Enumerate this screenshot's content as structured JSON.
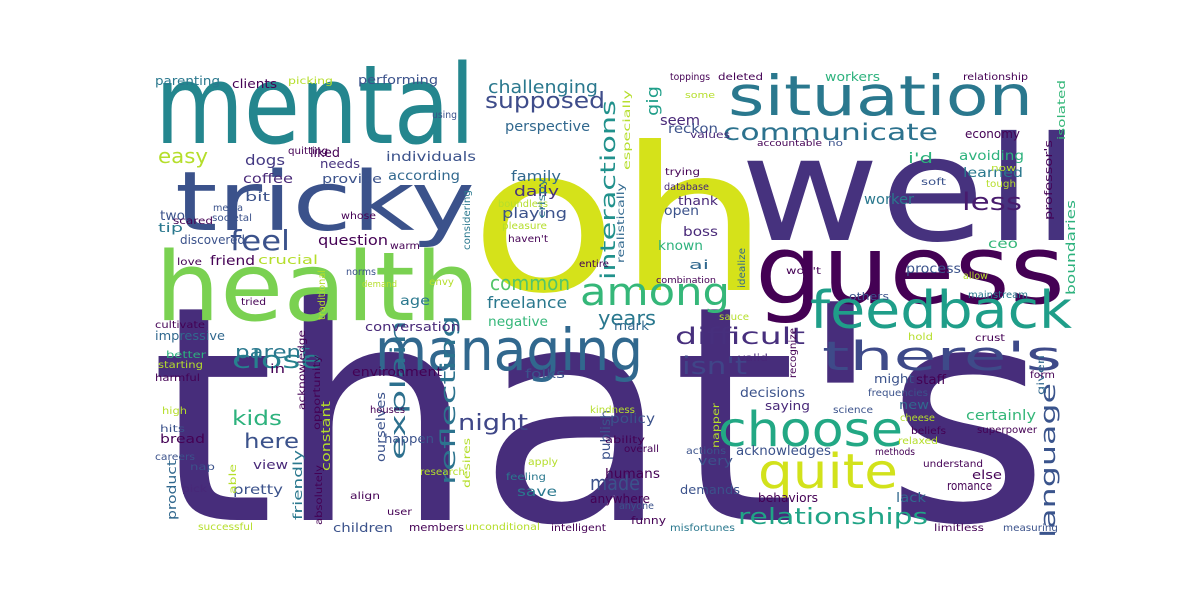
{
  "wordcloud": {
    "words": [
      {
        "text": "that's",
        "color": "#472d7b"
      },
      {
        "text": "oh",
        "color": "#d5e21a"
      },
      {
        "text": "well",
        "color": "#46327e"
      },
      {
        "text": "mental",
        "color": "#24868e"
      },
      {
        "text": "guess",
        "color": "#440154"
      },
      {
        "text": "health",
        "color": "#7ad151"
      },
      {
        "text": "tricky",
        "color": "#3b528b"
      },
      {
        "text": "situation",
        "color": "#2a788e"
      },
      {
        "text": "managing",
        "color": "#31688e"
      },
      {
        "text": "feedback",
        "color": "#1f9e89"
      },
      {
        "text": "choose",
        "color": "#22a884"
      },
      {
        "text": "quite",
        "color": "#d2e21b"
      },
      {
        "text": "there's",
        "color": "#3e4a89"
      },
      {
        "text": "among",
        "color": "#35b779"
      },
      {
        "text": "communicate",
        "color": "#2c728e"
      },
      {
        "text": "relationships",
        "color": "#20a486"
      },
      {
        "text": "difficult",
        "color": "#472f7d"
      },
      {
        "text": "feel",
        "color": "#3b528b"
      },
      {
        "text": "close",
        "color": "#26818e"
      },
      {
        "text": "isn't",
        "color": "#404588"
      },
      {
        "text": "supposed",
        "color": "#3e4c8a"
      },
      {
        "text": "language",
        "color": "#3a548c"
      },
      {
        "text": "interactions",
        "color": "#21918c"
      },
      {
        "text": "reflecting",
        "color": "#2c738e"
      },
      {
        "text": "explain",
        "color": "#2d708e"
      },
      {
        "text": "less",
        "color": "#481b6d"
      },
      {
        "text": "easy",
        "color": "#b5de2b"
      },
      {
        "text": "common",
        "color": "#52c569"
      },
      {
        "text": "night",
        "color": "#3f4788"
      },
      {
        "text": "kids",
        "color": "#2db27d"
      },
      {
        "text": "here",
        "color": "#3b528b"
      },
      {
        "text": "parent",
        "color": "#2a788e"
      },
      {
        "text": "years",
        "color": "#2a788e"
      },
      {
        "text": "made",
        "color": "#3b528b"
      },
      {
        "text": "challenging",
        "color": "#2a788e"
      },
      {
        "text": "seem",
        "color": "#482878"
      },
      {
        "text": "gig",
        "color": "#1f9e89"
      },
      {
        "text": "reckon",
        "color": "#3b528b"
      },
      {
        "text": "perspective",
        "color": "#31688e"
      },
      {
        "text": "worker",
        "color": "#2a788e"
      },
      {
        "text": "freelance",
        "color": "#2a788e"
      },
      {
        "text": "dogs",
        "color": "#443983"
      },
      {
        "text": "coffee",
        "color": "#482878"
      },
      {
        "text": "liked",
        "color": "#440154"
      },
      {
        "text": "needs",
        "color": "#46327e"
      },
      {
        "text": "provide",
        "color": "#3b528b"
      },
      {
        "text": "individuals",
        "color": "#3b528b"
      },
      {
        "text": "according",
        "color": "#31688e"
      },
      {
        "text": "family",
        "color": "#31688e"
      },
      {
        "text": "daily",
        "color": "#46327e"
      },
      {
        "text": "playing",
        "color": "#3b528b"
      },
      {
        "text": "question",
        "color": "#440154"
      },
      {
        "text": "crucial",
        "color": "#b5de2b"
      },
      {
        "text": "friend",
        "color": "#440154"
      },
      {
        "text": "age",
        "color": "#2a788e"
      },
      {
        "text": "conversation",
        "color": "#482878"
      },
      {
        "text": "negative",
        "color": "#35b779"
      },
      {
        "text": "mark",
        "color": "#31688e"
      },
      {
        "text": "environment",
        "color": "#440154"
      },
      {
        "text": "folks",
        "color": "#3b528b"
      },
      {
        "text": "policy",
        "color": "#3b528b"
      },
      {
        "text": "publish",
        "color": "#3b528b"
      },
      {
        "text": "humans",
        "color": "#440154"
      },
      {
        "text": "happen",
        "color": "#3b528b"
      },
      {
        "text": "ourselves",
        "color": "#3b528b"
      },
      {
        "text": "save",
        "color": "#2a788e"
      },
      {
        "text": "anywhere",
        "color": "#440154"
      },
      {
        "text": "demands",
        "color": "#3b528b"
      },
      {
        "text": "behaviors",
        "color": "#440154"
      },
      {
        "text": "lack",
        "color": "#31688e"
      },
      {
        "text": "romance",
        "color": "#440154"
      },
      {
        "text": "else",
        "color": "#440154"
      },
      {
        "text": "certainly",
        "color": "#35b779"
      },
      {
        "text": "decisions",
        "color": "#3b528b"
      },
      {
        "text": "acknowledges",
        "color": "#3b528b"
      },
      {
        "text": "saying",
        "color": "#482878"
      },
      {
        "text": "very",
        "color": "#3b528b"
      },
      {
        "text": "might",
        "color": "#3b528b"
      },
      {
        "text": "staff",
        "color": "#440154"
      },
      {
        "text": "new",
        "color": "#31688e"
      },
      {
        "text": "open",
        "color": "#3b528b"
      },
      {
        "text": "thank",
        "color": "#482878"
      },
      {
        "text": "boss",
        "color": "#482878"
      },
      {
        "text": "ai",
        "color": "#31688e"
      },
      {
        "text": "known",
        "color": "#2db27d"
      },
      {
        "text": "process",
        "color": "#3b528b"
      },
      {
        "text": "others",
        "color": "#3b528b"
      },
      {
        "text": "ceo",
        "color": "#35b779"
      },
      {
        "text": "learned",
        "color": "#2a788e"
      },
      {
        "text": "avoiding",
        "color": "#2db27d"
      },
      {
        "text": "i'd",
        "color": "#2db27d"
      },
      {
        "text": "economy",
        "color": "#440154"
      },
      {
        "text": "workers",
        "color": "#2db27d"
      },
      {
        "text": "isolated",
        "color": "#35b779"
      },
      {
        "text": "boundaries",
        "color": "#2db27d"
      },
      {
        "text": "professor's",
        "color": "#440154"
      },
      {
        "text": "two",
        "color": "#3b528b"
      },
      {
        "text": "tip",
        "color": "#2a788e"
      },
      {
        "text": "bit",
        "color": "#3b528b"
      },
      {
        "text": "discovered",
        "color": "#3b528b"
      },
      {
        "text": "love",
        "color": "#440154"
      },
      {
        "text": "tried",
        "color": "#440154"
      },
      {
        "text": "cultivate",
        "color": "#440154"
      },
      {
        "text": "impressive",
        "color": "#31688e"
      },
      {
        "text": "better",
        "color": "#2db27d"
      },
      {
        "text": "starting",
        "color": "#b5de2b"
      },
      {
        "text": "harmful",
        "color": "#440154"
      },
      {
        "text": "in",
        "color": "#440154"
      },
      {
        "text": "high",
        "color": "#b5de2b"
      },
      {
        "text": "hits",
        "color": "#3b528b"
      },
      {
        "text": "bread",
        "color": "#440154"
      },
      {
        "text": "careers",
        "color": "#3b528b"
      },
      {
        "text": "nap",
        "color": "#3b528b"
      },
      {
        "text": "pick",
        "color": "#482878"
      },
      {
        "text": "product",
        "color": "#31688e"
      },
      {
        "text": "view",
        "color": "#482878"
      },
      {
        "text": "pretty",
        "color": "#3b528b"
      },
      {
        "text": "friendly",
        "color": "#2a788e"
      },
      {
        "text": "successful",
        "color": "#b5de2b"
      },
      {
        "text": "children",
        "color": "#3b528b"
      },
      {
        "text": "members",
        "color": "#440154"
      },
      {
        "text": "unconditional",
        "color": "#b5de2b"
      },
      {
        "text": "intelligent",
        "color": "#440154"
      },
      {
        "text": "funny",
        "color": "#440154"
      },
      {
        "text": "misfortunes",
        "color": "#2a788e"
      },
      {
        "text": "limitless",
        "color": "#440154"
      },
      {
        "text": "measuring",
        "color": "#3b528b"
      },
      {
        "text": "parenting",
        "color": "#2a788e"
      },
      {
        "text": "clients",
        "color": "#440154"
      },
      {
        "text": "picking",
        "color": "#b5de2b"
      },
      {
        "text": "performing",
        "color": "#3b528b"
      },
      {
        "text": "using",
        "color": "#3b528b"
      },
      {
        "text": "quitting",
        "color": "#440154"
      },
      {
        "text": "toppings",
        "color": "#440154"
      },
      {
        "text": "deleted",
        "color": "#440154"
      },
      {
        "text": "relationship",
        "color": "#440154"
      },
      {
        "text": "values",
        "color": "#482878"
      },
      {
        "text": "especially",
        "color": "#b5de2b"
      },
      {
        "text": "accountable",
        "color": "#440154"
      },
      {
        "text": "no",
        "color": "#3b528b"
      },
      {
        "text": "some",
        "color": "#b5de2b"
      },
      {
        "text": "trying",
        "color": "#440154"
      },
      {
        "text": "database",
        "color": "#482878"
      },
      {
        "text": "soft",
        "color": "#3b528b"
      },
      {
        "text": "tough",
        "color": "#b5de2b"
      },
      {
        "text": "now",
        "color": "#b5de2b"
      },
      {
        "text": "media",
        "color": "#3b528b"
      },
      {
        "text": "societal",
        "color": "#3b528b"
      },
      {
        "text": "scared",
        "color": "#440154"
      },
      {
        "text": "whose",
        "color": "#440154"
      },
      {
        "text": "warm",
        "color": "#440154"
      },
      {
        "text": "considering",
        "color": "#2a788e"
      },
      {
        "text": "boundless",
        "color": "#b5de2b"
      },
      {
        "text": "pleasure",
        "color": "#b5de2b"
      },
      {
        "text": "crispy",
        "color": "#2a788e"
      },
      {
        "text": "haven't",
        "color": "#440154"
      },
      {
        "text": "realistically",
        "color": "#31688e"
      },
      {
        "text": "combination",
        "color": "#440154"
      },
      {
        "text": "entire",
        "color": "#440154"
      },
      {
        "text": "idealize",
        "color": "#31688e"
      },
      {
        "text": "won't",
        "color": "#440154"
      },
      {
        "text": "allow",
        "color": "#b5de2b"
      },
      {
        "text": "norms",
        "color": "#3b528b"
      },
      {
        "text": "traditional",
        "color": "#b5de2b"
      },
      {
        "text": "envy",
        "color": "#b5de2b"
      },
      {
        "text": "demand",
        "color": "#b5de2b"
      },
      {
        "text": "sauce",
        "color": "#b5de2b"
      },
      {
        "text": "mainstream",
        "color": "#2a788e"
      },
      {
        "text": "hold",
        "color": "#b5de2b"
      },
      {
        "text": "crust",
        "color": "#440154"
      },
      {
        "text": "recognize",
        "color": "#440154"
      },
      {
        "text": "valid",
        "color": "#482878"
      },
      {
        "text": "given",
        "color": "#31688e"
      },
      {
        "text": "form",
        "color": "#440154"
      },
      {
        "text": "frequencies",
        "color": "#3b528b"
      },
      {
        "text": "science",
        "color": "#3b528b"
      },
      {
        "text": "cheese",
        "color": "#b5de2b"
      },
      {
        "text": "beliefs",
        "color": "#440154"
      },
      {
        "text": "relaxed",
        "color": "#b5de2b"
      },
      {
        "text": "superpower",
        "color": "#440154"
      },
      {
        "text": "methods",
        "color": "#440154"
      },
      {
        "text": "napper",
        "color": "#b5de2b"
      },
      {
        "text": "understand",
        "color": "#440154"
      },
      {
        "text": "actions",
        "color": "#3b528b"
      },
      {
        "text": "overall",
        "color": "#440154"
      },
      {
        "text": "anyone",
        "color": "#3b528b"
      },
      {
        "text": "ability",
        "color": "#440154"
      },
      {
        "text": "kindness",
        "color": "#b5de2b"
      },
      {
        "text": "houses",
        "color": "#440154"
      },
      {
        "text": "research",
        "color": "#b5de2b"
      },
      {
        "text": "desires",
        "color": "#b5de2b"
      },
      {
        "text": "apply",
        "color": "#b5de2b"
      },
      {
        "text": "feeling",
        "color": "#2a788e"
      },
      {
        "text": "user",
        "color": "#440154"
      },
      {
        "text": "align",
        "color": "#440154"
      },
      {
        "text": "absolutely",
        "color": "#440154"
      },
      {
        "text": "opportunity",
        "color": "#440154"
      },
      {
        "text": "acknowledge",
        "color": "#440154"
      },
      {
        "text": "able",
        "color": "#b5de2b"
      },
      {
        "text": "constant",
        "color": "#b5de2b"
      }
    ]
  }
}
